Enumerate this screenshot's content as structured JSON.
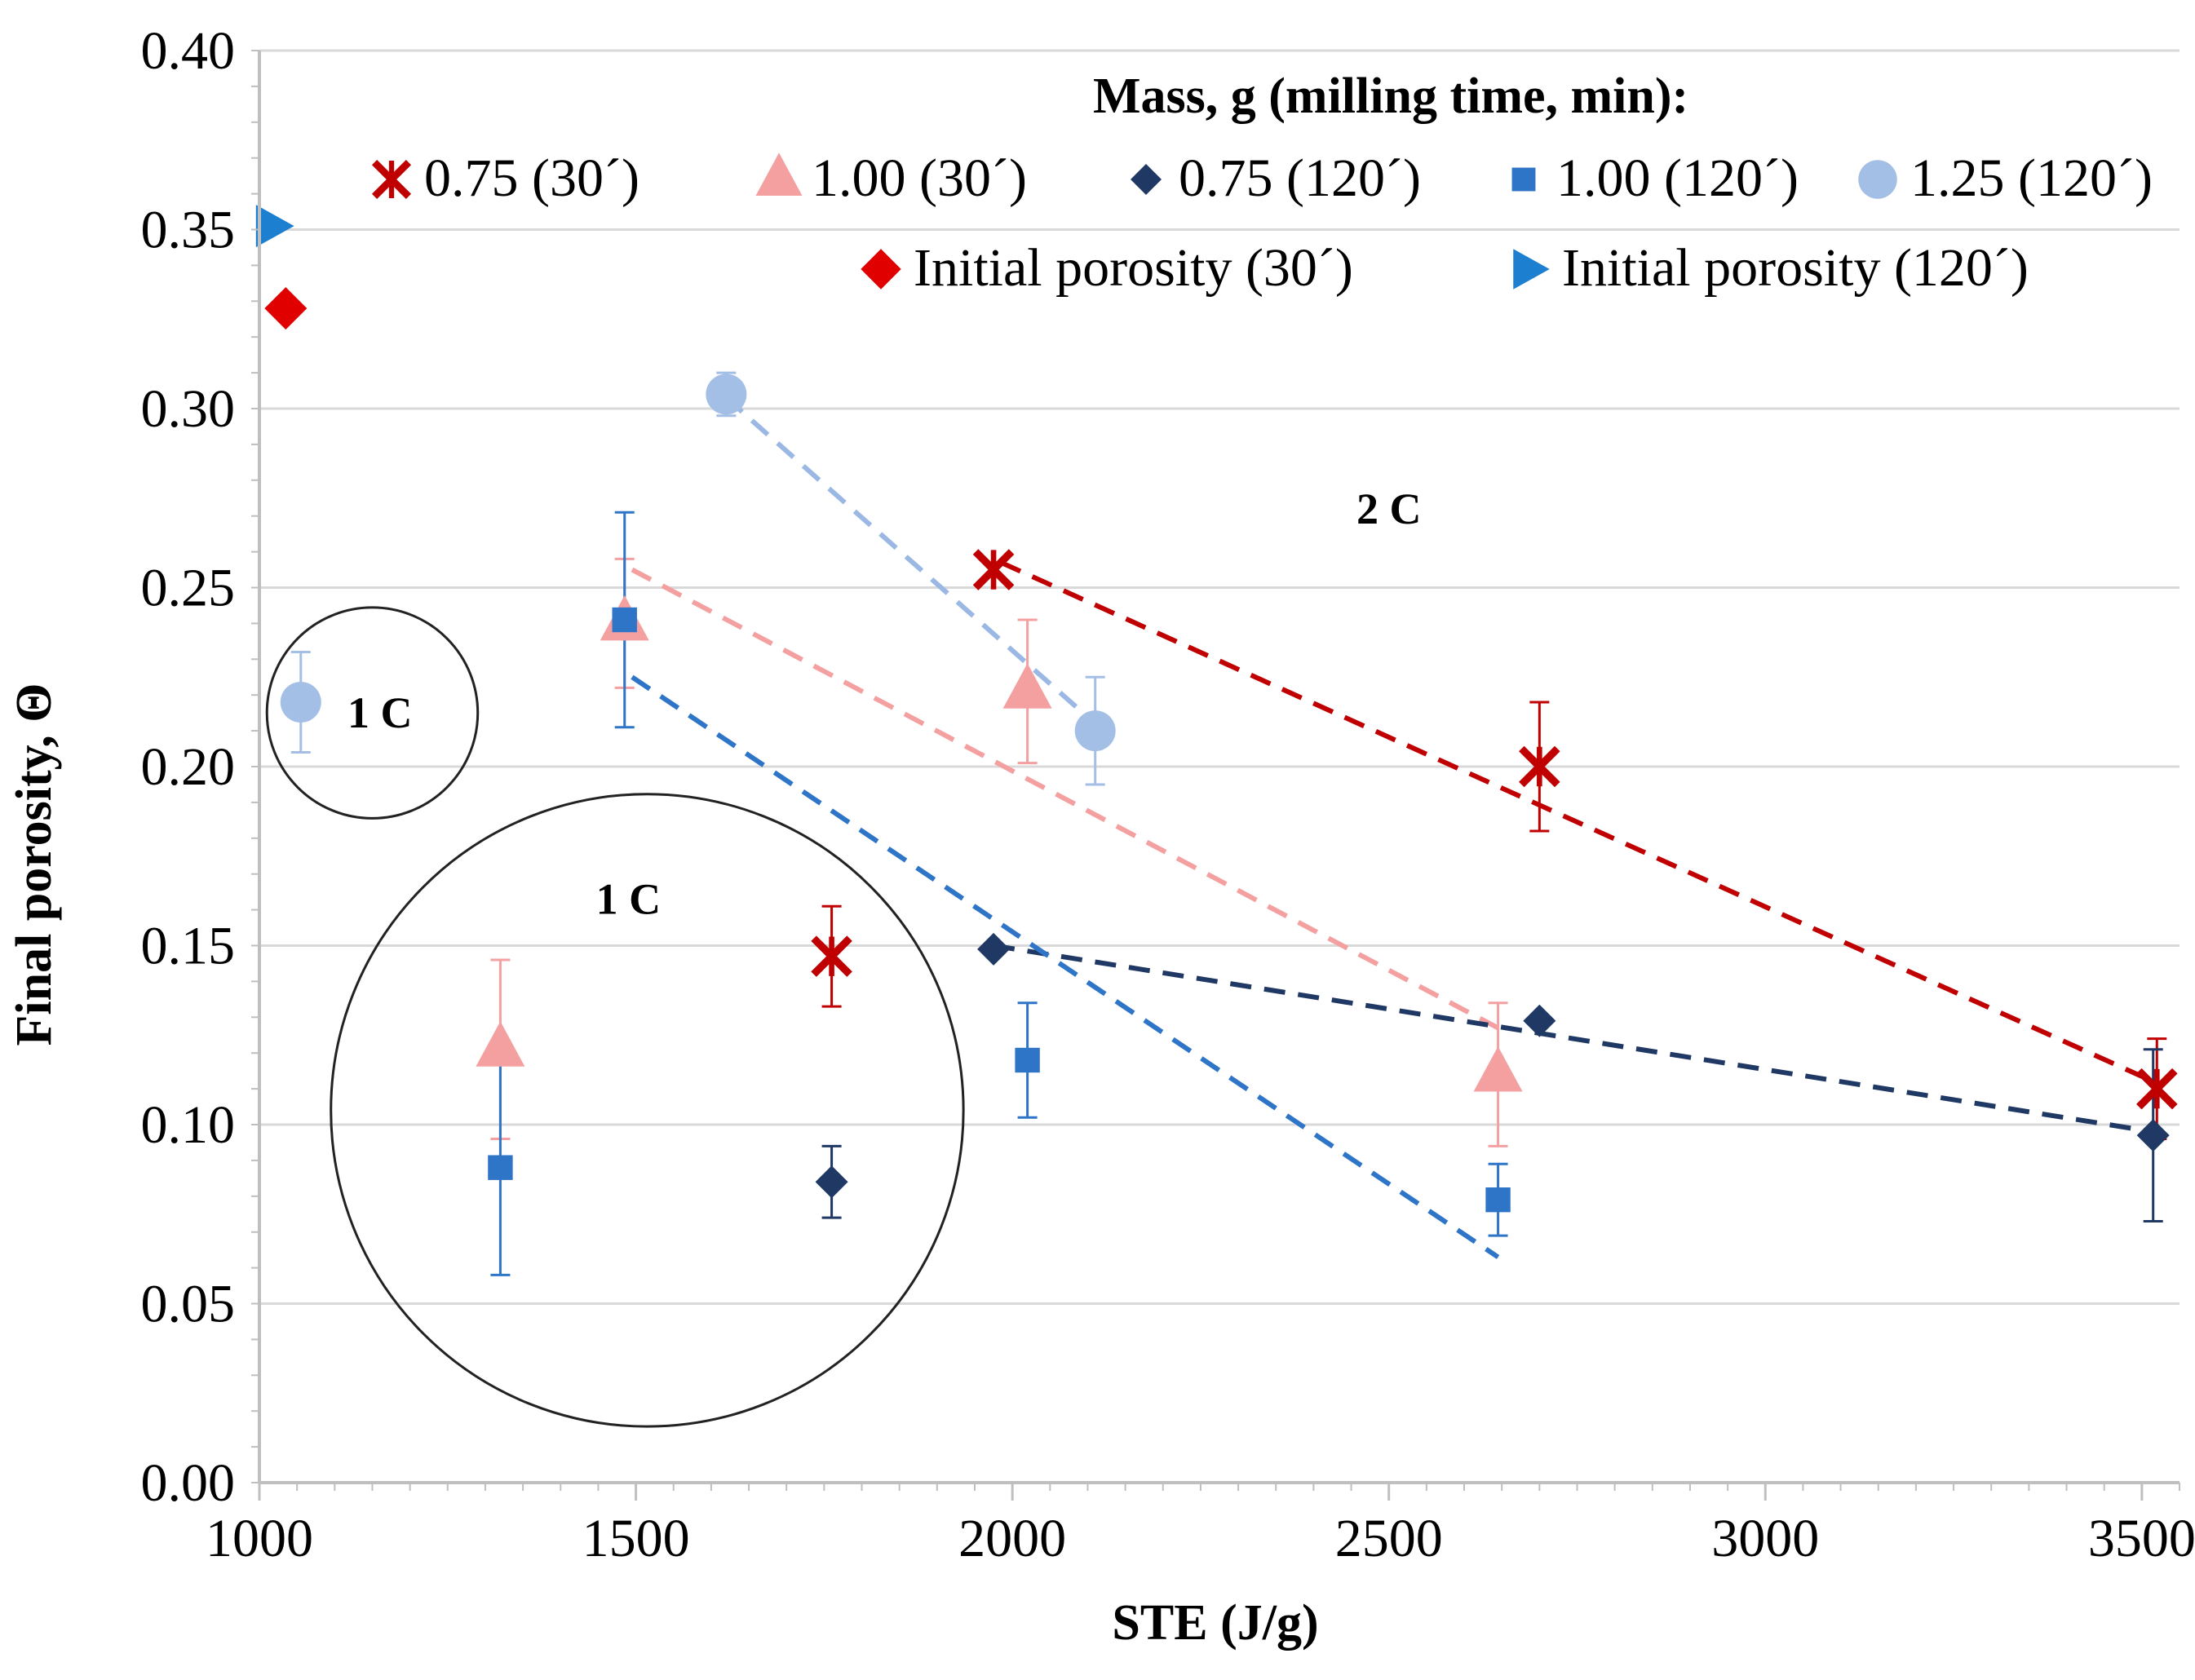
{
  "chart_data": {
    "type": "scatter",
    "title": "",
    "xlabel": "STE (J/g)",
    "ylabel": "Final porosity, Θ",
    "xlim": [
      1000,
      3550
    ],
    "ylim": [
      0,
      0.4
    ],
    "x_ticks": [
      "1000",
      "1500",
      "2000",
      "2500",
      "3000",
      "3500"
    ],
    "y_ticks": [
      "0.00",
      "0.05",
      "0.10",
      "0.15",
      "0.20",
      "0.25",
      "0.30",
      "0.35",
      "0.40"
    ],
    "grid": "horizontal",
    "legend_title": "Mass, g (milling time, min):",
    "legend_position": "top-right",
    "series": [
      {
        "name": "0.75 (30´)",
        "marker": "star",
        "color": "#c00000",
        "points": [
          {
            "x": 1760,
            "y": 0.147,
            "err": 0.014
          },
          {
            "x": 1975,
            "y": 0.255,
            "err": 0.0
          },
          {
            "x": 2700,
            "y": 0.2,
            "err": 0.018
          },
          {
            "x": 3520,
            "y": 0.11,
            "err": 0.014
          }
        ],
        "trend": [
          [
            1985,
            0.257
          ],
          [
            3505,
            0.113
          ]
        ],
        "trend_color": "#c00000"
      },
      {
        "name": "1.00 (30´)",
        "marker": "triangle",
        "color": "#f4a0a0",
        "points": [
          {
            "x": 1320,
            "y": 0.121,
            "err": 0.025
          },
          {
            "x": 1485,
            "y": 0.24,
            "err": 0.018
          },
          {
            "x": 2020,
            "y": 0.221,
            "err": 0.02
          },
          {
            "x": 2645,
            "y": 0.114,
            "err": 0.02
          }
        ],
        "trend": [
          [
            1495,
            0.255
          ],
          [
            2645,
            0.127
          ]
        ],
        "trend_color": "#f4a0a0"
      },
      {
        "name": "0.75 (120´)",
        "marker": "diamond",
        "color": "#1f3864",
        "points": [
          {
            "x": 1760,
            "y": 0.084,
            "err": 0.01
          },
          {
            "x": 1975,
            "y": 0.149,
            "err": 0.0
          },
          {
            "x": 2700,
            "y": 0.129,
            "err": 0.0
          },
          {
            "x": 3515,
            "y": 0.097,
            "err": 0.024
          }
        ],
        "trend": [
          [
            1975,
            0.15
          ],
          [
            3515,
            0.098
          ]
        ],
        "trend_color": "#1f3864"
      },
      {
        "name": "1.00 (120´)",
        "marker": "square",
        "color": "#2e75c8",
        "points": [
          {
            "x": 1320,
            "y": 0.088,
            "err": 0.03
          },
          {
            "x": 1485,
            "y": 0.241,
            "err": 0.03
          },
          {
            "x": 2020,
            "y": 0.118,
            "err": 0.016
          },
          {
            "x": 2645,
            "y": 0.079,
            "err": 0.01
          }
        ],
        "trend": [
          [
            1495,
            0.225
          ],
          [
            2645,
            0.063
          ]
        ],
        "trend_color": "#2e75c8"
      },
      {
        "name": "1.25 (120´)",
        "marker": "circle",
        "color": "#a4bfe6",
        "points": [
          {
            "x": 1055,
            "y": 0.218,
            "err": 0.014
          },
          {
            "x": 1620,
            "y": 0.304,
            "err": 0.006
          },
          {
            "x": 2110,
            "y": 0.21,
            "err": 0.015
          }
        ],
        "trend": [
          [
            1620,
            0.303
          ],
          [
            2110,
            0.212
          ]
        ],
        "trend_color": "#9bb8e4"
      },
      {
        "name": "Initial porosity (30´)",
        "marker": "big-diamond",
        "color": "#e00000",
        "points": [
          {
            "x": 1035,
            "y": 0.328,
            "err": 0.0
          }
        ]
      },
      {
        "name": "Initial porosity (120´)",
        "marker": "right-triangle",
        "color": "#1c7fd0",
        "points": [
          {
            "x": 1018,
            "y": 0.351,
            "err": 0.0
          }
        ]
      }
    ],
    "annotations": [
      {
        "text": "1 C",
        "x": 1160,
        "y": 0.215
      },
      {
        "text": "1 C",
        "x": 1490,
        "y": 0.163
      },
      {
        "text": "2 C",
        "x": 2500,
        "y": 0.272
      }
    ],
    "circles": [
      {
        "cx": 1150,
        "cy": 0.215,
        "r_units": 140
      },
      {
        "cx": 1515,
        "cy": 0.104,
        "r_units": 420
      }
    ]
  }
}
